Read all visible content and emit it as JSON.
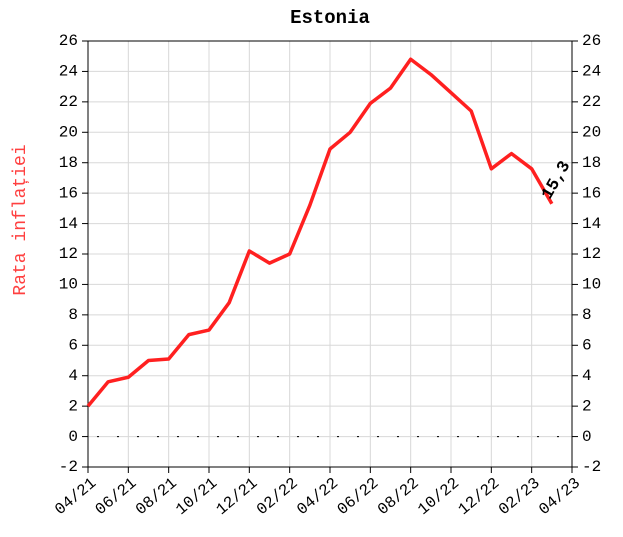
{
  "chart_data": {
    "type": "line",
    "title": "Estonia",
    "ylabel": "Rata inflației",
    "categories": [
      "04/21",
      null,
      "06/21",
      null,
      "08/21",
      null,
      "10/21",
      null,
      "12/21",
      null,
      "02/22",
      null,
      "04/22",
      null,
      "06/22",
      null,
      "08/22",
      null,
      "10/22",
      null,
      "12/22",
      null,
      "02/23",
      null,
      "04/23"
    ],
    "series": [
      {
        "name": "Estonia",
        "color": "#ff2020",
        "values": [
          2.0,
          3.6,
          3.9,
          5.0,
          5.1,
          6.7,
          7.0,
          8.8,
          12.2,
          11.4,
          12.0,
          15.2,
          18.9,
          20.0,
          21.9,
          22.9,
          24.8,
          23.8,
          22.6,
          21.4,
          17.6,
          18.6,
          17.6,
          15.3,
          null
        ],
        "value_labels": [
          null,
          null,
          null,
          null,
          null,
          null,
          null,
          null,
          null,
          null,
          null,
          null,
          null,
          null,
          null,
          null,
          null,
          null,
          null,
          null,
          null,
          null,
          null,
          "15,3",
          null
        ]
      }
    ],
    "ylim": [
      -2,
      26
    ],
    "yticks": [
      -2,
      0,
      2,
      4,
      6,
      8,
      10,
      12,
      14,
      16,
      18,
      20,
      22,
      24,
      26
    ],
    "grid": true
  }
}
